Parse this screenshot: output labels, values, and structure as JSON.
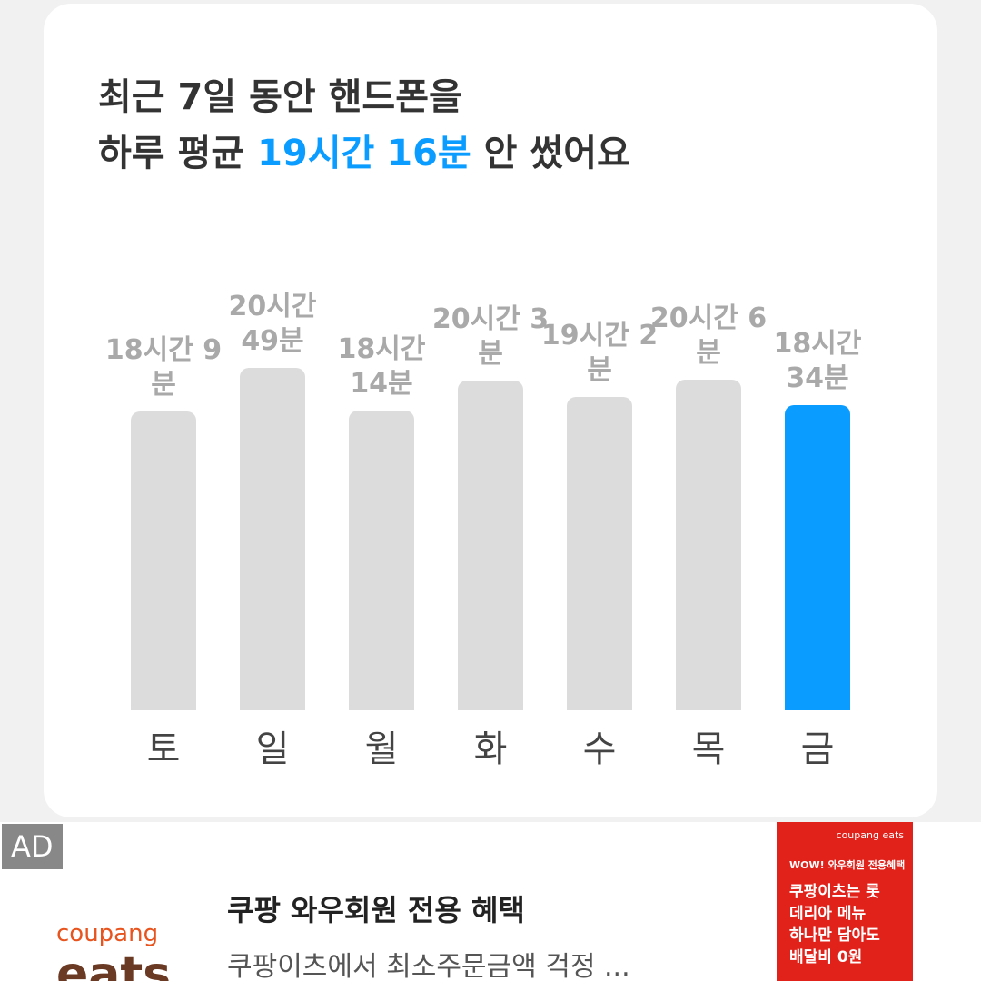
{
  "chart_data": {
    "type": "bar",
    "title_line1": "최근 7일 동안 핸드폰을",
    "title_prefix": "하루 평균",
    "title_highlight": "19시간 16분",
    "title_suffix": "안 썼어요",
    "categories": [
      "토",
      "일",
      "월",
      "화",
      "수",
      "목",
      "금"
    ],
    "values": [
      1089,
      1249,
      1094,
      1203,
      1142,
      1206,
      1114
    ],
    "value_labels": [
      "18시간 9분",
      "20시간 49분",
      "18시간 14분",
      "20시간 3분",
      "19시간 2분",
      "20시간 6분",
      "18시간 34분"
    ],
    "colors": [
      "#dcdcdc",
      "#dcdcdc",
      "#dcdcdc",
      "#dcdcdc",
      "#dcdcdc",
      "#dcdcdc",
      "#0a9cff"
    ],
    "highlight_color": "#0a9cff"
  },
  "ad": {
    "badge": "AD",
    "logo_top": "coupang",
    "logo_bottom": "eats",
    "title": "쿠팡 와우회원 전용 혜택",
    "description": "쿠팡이츠에서 최소주문금액 걱정 ...",
    "image_brand": "coupang eats",
    "image_tag": "WOW! 와우회원 전용혜택",
    "image_text": "쿠팡이츠는 롯데리아 메뉴 하나만 담아도 배달비 0원"
  }
}
